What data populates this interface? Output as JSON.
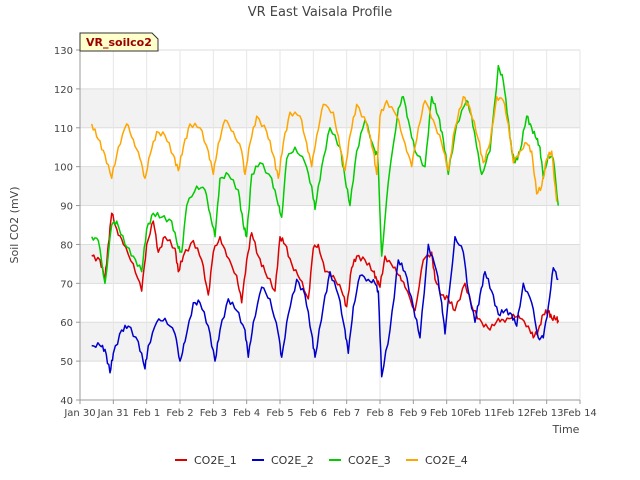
{
  "chart_data": {
    "type": "line",
    "title": "VR East Vaisala Profile",
    "badge": "VR_soilco2",
    "xlabel": "Time",
    "ylabel": "Soil CO2 (mV)",
    "xlim": [
      0,
      15
    ],
    "ylim": [
      40,
      130
    ],
    "x_ticks": [
      {
        "value": 0,
        "label": "Jan 30"
      },
      {
        "value": 1,
        "label": "Jan 31"
      },
      {
        "value": 2,
        "label": "Feb 1"
      },
      {
        "value": 3,
        "label": "Feb 2"
      },
      {
        "value": 4,
        "label": "Feb 3"
      },
      {
        "value": 5,
        "label": "Feb 4"
      },
      {
        "value": 6,
        "label": "Feb 5"
      },
      {
        "value": 7,
        "label": "Feb 6"
      },
      {
        "value": 8,
        "label": "Feb 7"
      },
      {
        "value": 9,
        "label": "Feb 8"
      },
      {
        "value": 10,
        "label": "Feb 9"
      },
      {
        "value": 11,
        "label": "Feb 10"
      },
      {
        "value": 12,
        "label": "Feb 11"
      },
      {
        "value": 13,
        "label": "Feb 12"
      },
      {
        "value": 14,
        "label": "Feb 13"
      },
      {
        "value": 15,
        "label": "Feb 14"
      }
    ],
    "y_ticks": [
      40,
      50,
      60,
      70,
      80,
      90,
      100,
      110,
      120,
      130
    ],
    "legend_position": "bottom",
    "series": [
      {
        "name": "CO2E_1",
        "color": "#dd0000",
        "x": [
          0.35,
          0.6,
          0.75,
          0.85,
          0.95,
          1.1,
          1.3,
          1.6,
          1.85,
          2.0,
          2.2,
          2.35,
          2.55,
          2.85,
          2.95,
          3.1,
          3.4,
          3.65,
          3.85,
          4.0,
          4.2,
          4.4,
          4.7,
          4.85,
          5.0,
          5.15,
          5.35,
          5.55,
          5.85,
          6.0,
          6.15,
          6.35,
          6.6,
          6.85,
          7.0,
          7.15,
          7.35,
          7.6,
          7.85,
          8.0,
          8.15,
          8.3,
          8.55,
          8.8,
          8.9,
          9.0,
          9.15,
          9.4,
          9.6,
          9.75,
          10.05,
          10.3,
          10.55,
          10.65,
          10.85,
          11.05,
          11.25,
          11.55,
          11.8,
          12.05,
          12.3,
          12.55,
          12.75,
          13.0,
          13.2,
          13.45,
          13.6,
          13.75,
          13.9,
          14.05,
          14.15,
          14.3,
          14.35
        ],
        "y": [
          77,
          76,
          71,
          80,
          88,
          84,
          80,
          75,
          68,
          80,
          86,
          78,
          82,
          79,
          73,
          77,
          81,
          76,
          67,
          78,
          82,
          77,
          72,
          65,
          76,
          83,
          77,
          73,
          68,
          82,
          80,
          75,
          71,
          66,
          79,
          80,
          73,
          72,
          68,
          64,
          74,
          77,
          76,
          73,
          71,
          69,
          77,
          74,
          72,
          69,
          63,
          76,
          78,
          71,
          67,
          66,
          63,
          70,
          63,
          60,
          58,
          61,
          60,
          62,
          61,
          59,
          56,
          58,
          62,
          63,
          61,
          61,
          60
        ]
      },
      {
        "name": "CO2E_2",
        "color": "#0000cc",
        "x": [
          0.35,
          0.6,
          0.75,
          0.9,
          1.0,
          1.25,
          1.45,
          1.75,
          1.95,
          2.05,
          2.3,
          2.55,
          2.85,
          3.0,
          3.15,
          3.4,
          3.6,
          3.85,
          4.05,
          4.2,
          4.45,
          4.7,
          4.95,
          5.05,
          5.2,
          5.45,
          5.7,
          5.95,
          6.05,
          6.25,
          6.5,
          6.75,
          6.95,
          7.05,
          7.3,
          7.5,
          7.75,
          7.95,
          8.05,
          8.2,
          8.4,
          8.65,
          8.85,
          8.95,
          9.05,
          9.3,
          9.55,
          9.75,
          10.0,
          10.2,
          10.45,
          10.7,
          10.85,
          10.95,
          11.25,
          11.5,
          11.65,
          11.85,
          12.0,
          12.15,
          12.35,
          12.55,
          12.75,
          12.95,
          13.1,
          13.3,
          13.55,
          13.75,
          13.9,
          14.05,
          14.2,
          14.35
        ],
        "y": [
          54,
          54,
          53,
          47,
          52,
          58,
          59,
          55,
          48,
          54,
          60,
          61,
          57,
          50,
          55,
          65,
          65,
          59,
          50,
          58,
          66,
          63,
          58,
          51,
          60,
          69,
          66,
          57,
          51,
          62,
          71,
          67,
          57,
          51,
          64,
          73,
          67,
          58,
          52,
          64,
          72,
          71,
          70,
          68,
          46,
          58,
          76,
          73,
          64,
          56,
          80,
          73,
          65,
          57,
          82,
          78,
          68,
          60,
          67,
          73,
          68,
          62,
          63,
          62,
          59,
          70,
          65,
          56,
          56,
          64,
          74,
          71
        ]
      },
      {
        "name": "CO2E_3",
        "color": "#00cc00",
        "x": [
          0.35,
          0.55,
          0.75,
          0.95,
          1.1,
          1.35,
          1.6,
          1.85,
          2.0,
          2.2,
          2.45,
          2.75,
          2.95,
          3.05,
          3.2,
          3.5,
          3.75,
          3.9,
          4.05,
          4.2,
          4.45,
          4.75,
          4.9,
          5.0,
          5.15,
          5.4,
          5.75,
          5.95,
          6.05,
          6.2,
          6.45,
          6.75,
          6.95,
          7.05,
          7.25,
          7.5,
          7.8,
          7.95,
          8.1,
          8.3,
          8.55,
          8.85,
          8.93,
          9.05,
          9.25,
          9.55,
          9.7,
          9.85,
          10.05,
          10.35,
          10.55,
          10.75,
          10.9,
          11.05,
          11.3,
          11.6,
          11.75,
          11.9,
          12.05,
          12.3,
          12.55,
          12.7,
          12.85,
          12.95,
          13.05,
          13.2,
          13.4,
          13.55,
          13.7,
          13.8,
          13.9,
          14.05,
          14.2,
          14.35
        ],
        "y": [
          82,
          81,
          70,
          85,
          86,
          80,
          77,
          73,
          84,
          88,
          87,
          86,
          79,
          78,
          90,
          95,
          94,
          88,
          82,
          97,
          98,
          94,
          85,
          82,
          98,
          101,
          97,
          90,
          87,
          102,
          105,
          101,
          95,
          89,
          100,
          110,
          105,
          97,
          90,
          104,
          112,
          104,
          103,
          77,
          96,
          115,
          118,
          112,
          104,
          100,
          118,
          113,
          107,
          98,
          111,
          117,
          113,
          105,
          98,
          104,
          126,
          122,
          112,
          104,
          101,
          104,
          113,
          110,
          107,
          105,
          97,
          103,
          102,
          90
        ]
      },
      {
        "name": "CO2E_4",
        "color": "#ffa500",
        "x": [
          0.35,
          0.55,
          0.75,
          0.95,
          1.15,
          1.4,
          1.6,
          1.8,
          1.95,
          2.1,
          2.3,
          2.55,
          2.8,
          2.95,
          3.1,
          3.3,
          3.6,
          3.85,
          4.0,
          4.15,
          4.35,
          4.6,
          4.85,
          4.95,
          5.1,
          5.3,
          5.6,
          5.8,
          5.95,
          6.1,
          6.3,
          6.6,
          6.8,
          6.95,
          7.1,
          7.3,
          7.6,
          7.8,
          7.95,
          8.1,
          8.3,
          8.6,
          8.8,
          8.9,
          9.0,
          9.2,
          9.5,
          9.75,
          9.95,
          10.15,
          10.35,
          10.6,
          10.85,
          11.05,
          11.25,
          11.5,
          11.7,
          11.95,
          12.1,
          12.3,
          12.5,
          12.7,
          12.85,
          13.0,
          13.2,
          13.4,
          13.55,
          13.7,
          13.85,
          14.0,
          14.15,
          14.3
        ],
        "y": [
          111,
          107,
          103,
          97,
          105,
          111,
          107,
          102,
          97,
          103,
          109,
          108,
          103,
          99,
          105,
          111,
          110,
          104,
          98,
          106,
          112,
          109,
          104,
          98,
          106,
          113,
          109,
          103,
          97,
          106,
          114,
          113,
          106,
          100,
          108,
          116,
          114,
          105,
          99,
          108,
          116,
          111,
          104,
          98,
          113,
          117,
          113,
          106,
          100,
          110,
          117,
          112,
          106,
          99,
          110,
          118,
          115,
          107,
          101,
          106,
          118,
          117,
          111,
          101,
          104,
          106,
          104,
          93,
          95,
          102,
          104,
          91
        ]
      }
    ]
  }
}
